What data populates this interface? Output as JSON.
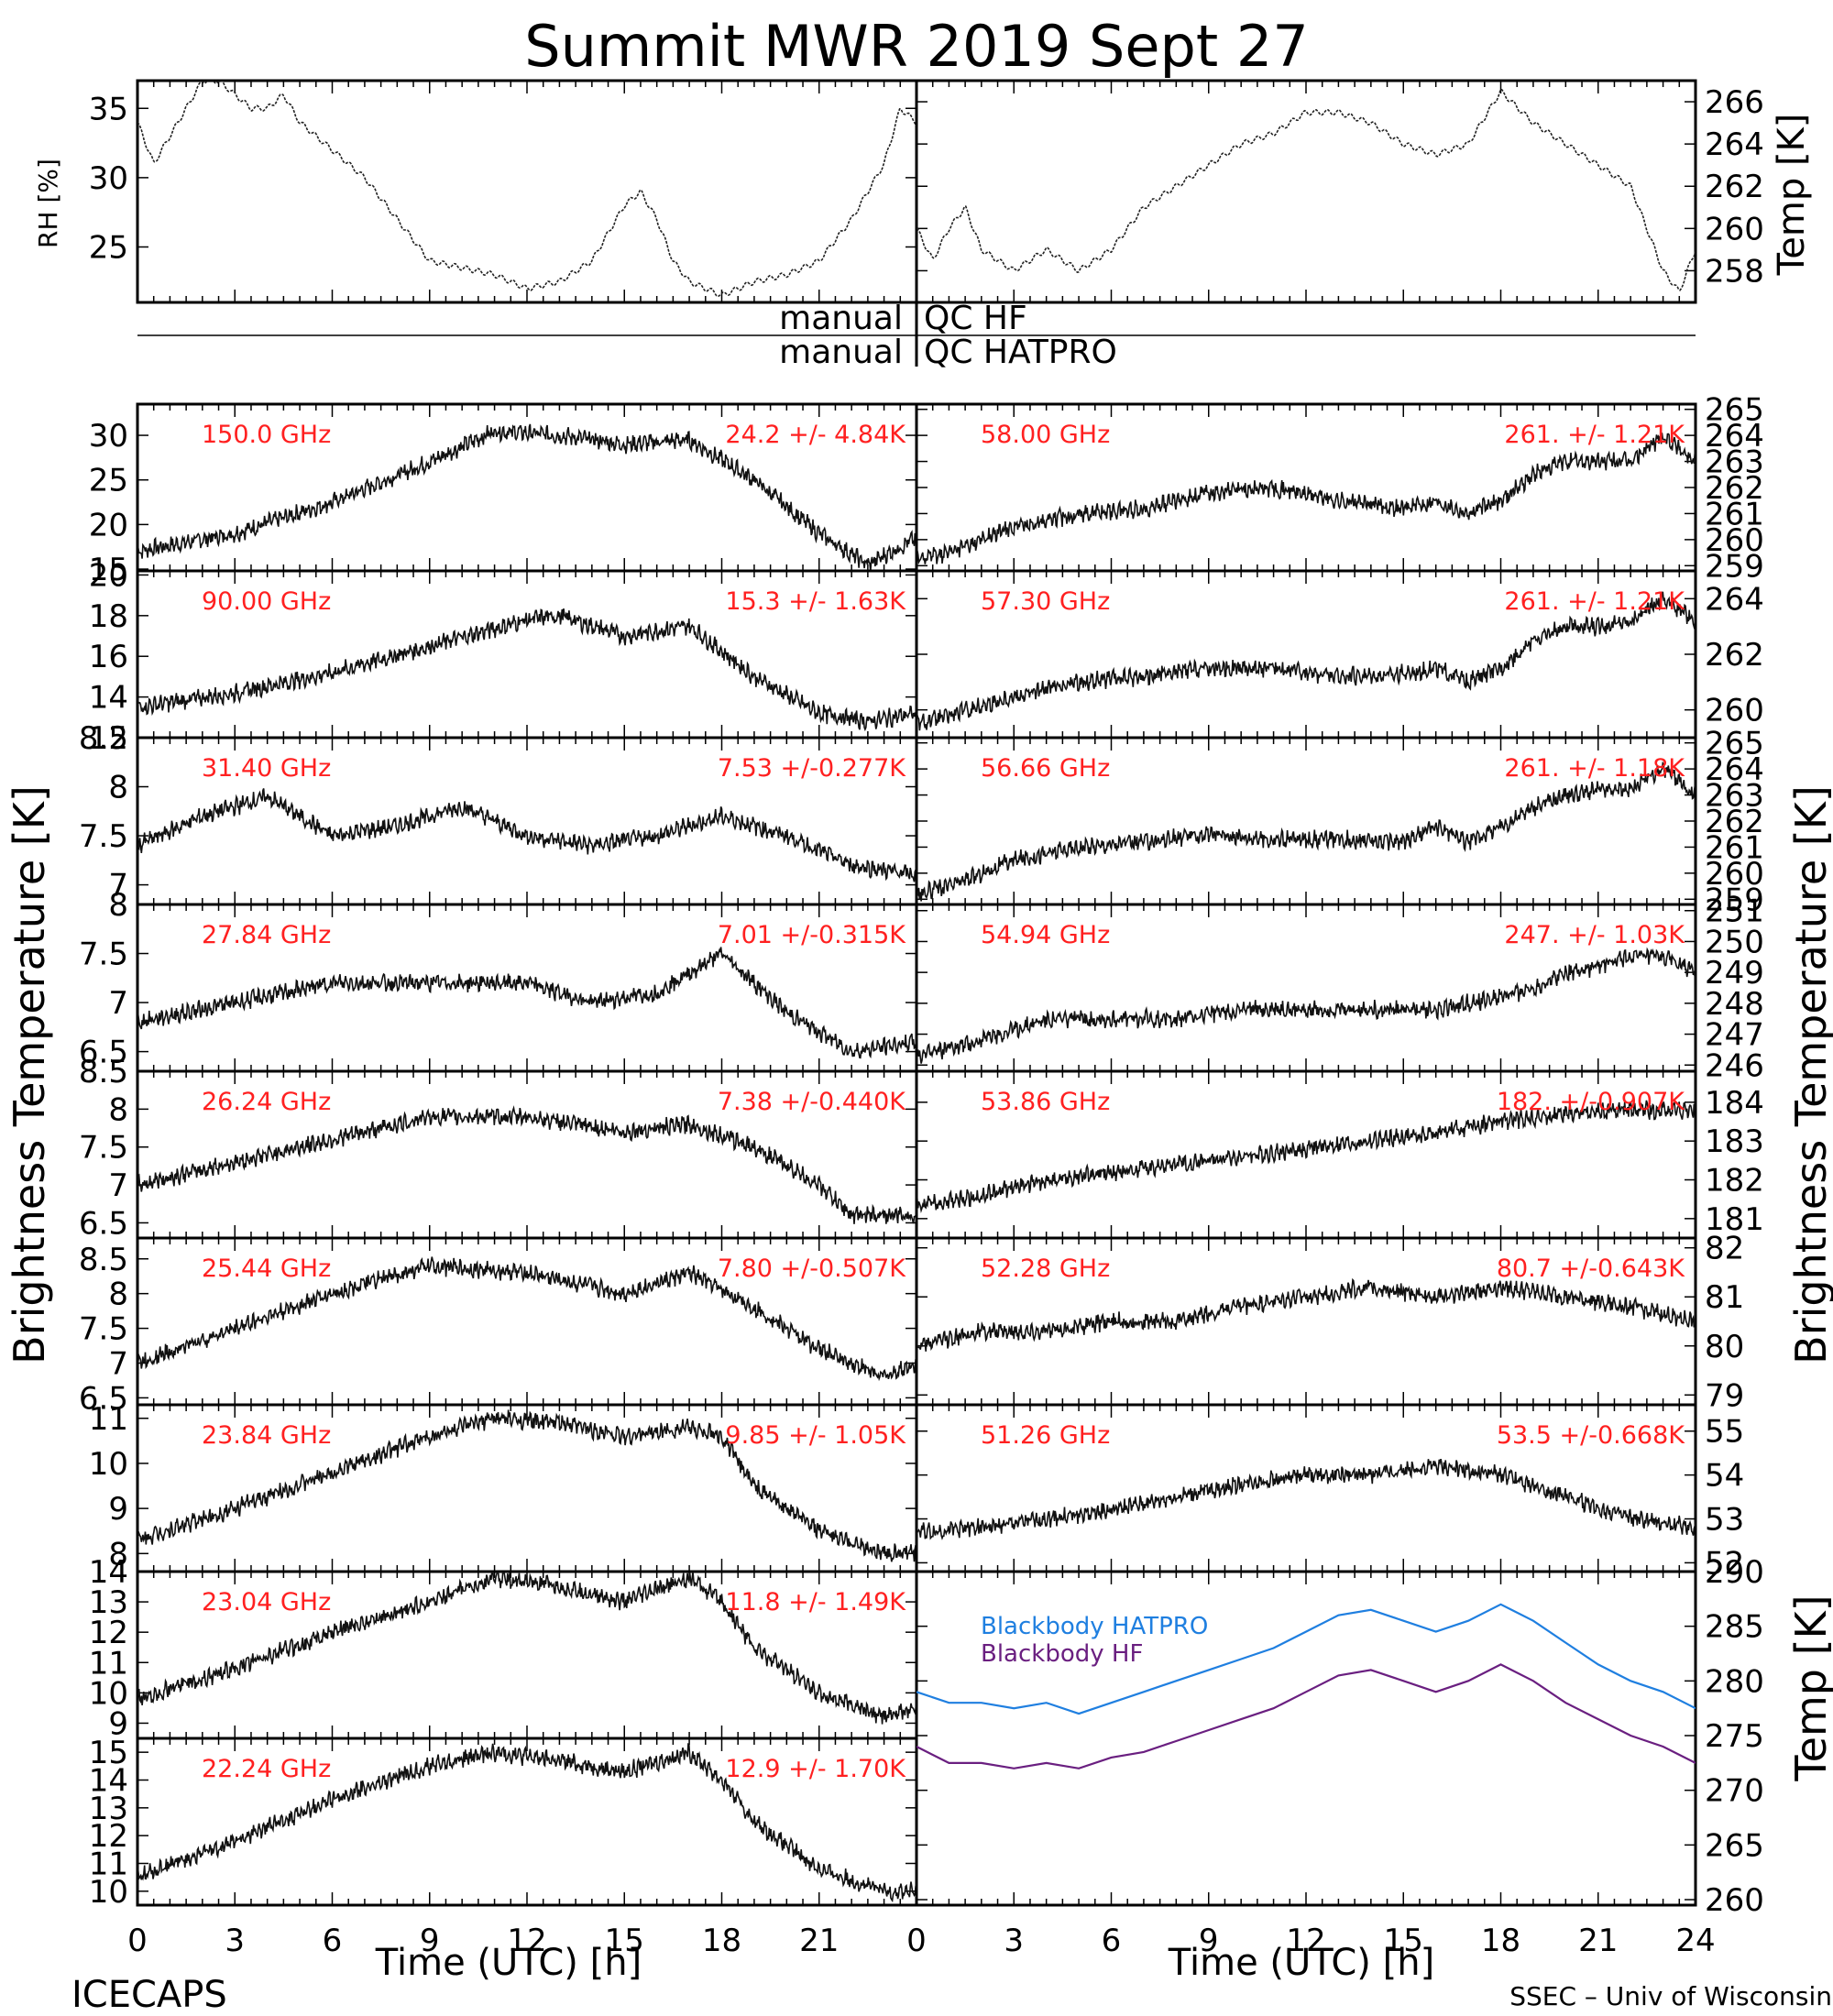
{
  "title": "Summit MWR 2019 Sept 27",
  "footer_left": "ICECAPS",
  "footer_right": "SSEC – Univ of Wisconsin",
  "qc_labels": [
    {
      "left": "manual",
      "right": "QC HF"
    },
    {
      "left": "manual",
      "right": "QC HATPRO"
    }
  ],
  "axis_labels": {
    "rh": "RH [%]",
    "temp_top": "Temp [K]",
    "bt_left": "Brightness Temperature [K]",
    "bt_right": "Brightness Temperature [K]",
    "temp_bottom": "Temp [K]",
    "x_left": "Time (UTC) [h]",
    "x_right": "Time (UTC) [h]"
  },
  "x_ticks_left": [
    "0",
    "3",
    "6",
    "9",
    "12",
    "15",
    "18",
    "21"
  ],
  "x_ticks_right": [
    "0",
    "3",
    "6",
    "9",
    "12",
    "15",
    "18",
    "21",
    "24"
  ],
  "colors": {
    "hatpro": "#1f7fe0",
    "hf": "#6a1f80",
    "label_red": "#ff2020"
  },
  "chart_data": [
    {
      "type": "line",
      "name": "rh",
      "ylim": [
        21,
        37
      ],
      "ticks": [
        25,
        30,
        35
      ],
      "x": [
        0,
        0.5,
        1,
        1.5,
        2,
        2.5,
        3,
        3.5,
        4,
        4.5,
        5,
        5.5,
        6,
        7,
        8,
        9,
        10,
        11,
        12,
        13,
        14,
        14.5,
        15,
        15.5,
        16,
        16.5,
        17,
        18,
        19,
        20,
        21,
        22,
        23,
        23.5,
        24
      ],
      "y": [
        34,
        31,
        33,
        35,
        37,
        37,
        36,
        35,
        35,
        36,
        34,
        33,
        32,
        30,
        27,
        24,
        23.5,
        23,
        22,
        22.5,
        24,
        26,
        28,
        29,
        27,
        24,
        22.5,
        21.5,
        22.5,
        23,
        24,
        27,
        31,
        35,
        34
      ]
    },
    {
      "type": "line",
      "name": "temp-top",
      "ylim": [
        256.5,
        267
      ],
      "ticks": [
        258,
        260,
        262,
        264,
        266
      ],
      "x": [
        0,
        0.5,
        1,
        1.5,
        2,
        3,
        4,
        5,
        6,
        7,
        8,
        9,
        10,
        11,
        12,
        13,
        14,
        15,
        16,
        17,
        18,
        19,
        20,
        21,
        22,
        22.5,
        23,
        23.5,
        24
      ],
      "y": [
        260,
        258.5,
        260,
        261,
        259,
        258,
        259,
        258,
        259,
        261,
        262,
        263,
        264,
        264.5,
        265.5,
        265.5,
        265,
        264,
        263.5,
        264,
        266.5,
        265,
        264,
        263,
        262,
        260,
        258,
        257,
        259
      ]
    },
    {
      "type": "scatter",
      "name": "150-ghz",
      "freq": "150.0 GHz",
      "stats": "24.2 +/-  4.84K",
      "ylim": [
        14.8,
        33.5
      ],
      "ticks": [
        15,
        20,
        25,
        30
      ],
      "x": [
        0,
        3,
        6,
        9,
        11,
        13,
        15,
        17,
        19,
        21,
        22.5,
        24
      ],
      "y": [
        17,
        19,
        22.5,
        27,
        30.5,
        30,
        29,
        29.5,
        25,
        19,
        15.5,
        18.5
      ]
    },
    {
      "type": "scatter",
      "name": "90-ghz",
      "freq": "90.00 GHz",
      "stats": "15.3 +/-  1.63K",
      "ylim": [
        12,
        20.2
      ],
      "ticks": [
        12,
        14,
        16,
        18,
        20
      ],
      "x": [
        0,
        3,
        6,
        9,
        12,
        13,
        15,
        17,
        19,
        21,
        22.5,
        24
      ],
      "y": [
        13.5,
        14.2,
        15.2,
        16.5,
        17.8,
        18,
        17,
        17.5,
        15,
        13.2,
        12.8,
        13.2
      ]
    },
    {
      "type": "scatter",
      "name": "31-ghz",
      "freq": "31.40 GHz",
      "stats": "7.53 +/-0.277K",
      "ylim": [
        6.8,
        8.5
      ],
      "ticks": [
        7.0,
        7.5,
        8.0,
        8.5
      ],
      "x": [
        0,
        2,
        4,
        6,
        8,
        10,
        12,
        14,
        16,
        18,
        20,
        22,
        24
      ],
      "y": [
        7.4,
        7.7,
        7.9,
        7.5,
        7.6,
        7.8,
        7.5,
        7.4,
        7.5,
        7.7,
        7.5,
        7.2,
        7.1
      ]
    },
    {
      "type": "scatter",
      "name": "27-ghz",
      "freq": "27.84 GHz",
      "stats": "7.01 +/-0.315K",
      "ylim": [
        6.3,
        8.0
      ],
      "ticks": [
        6.5,
        7.0,
        7.5,
        8.0
      ],
      "x": [
        0,
        3,
        6,
        9,
        12,
        14,
        16,
        18,
        20,
        22,
        24
      ],
      "y": [
        6.8,
        7.0,
        7.2,
        7.2,
        7.2,
        7.0,
        7.1,
        7.5,
        6.9,
        6.5,
        6.6
      ]
    },
    {
      "type": "scatter",
      "name": "26-ghz",
      "freq": "26.24 GHz",
      "stats": "7.38 +/-0.440K",
      "ylim": [
        6.3,
        8.5
      ],
      "ticks": [
        6.5,
        7.0,
        7.5,
        8.0,
        8.5
      ],
      "x": [
        0,
        3,
        6,
        9,
        12,
        15,
        17,
        19,
        21,
        22,
        24
      ],
      "y": [
        7.0,
        7.3,
        7.6,
        7.9,
        7.9,
        7.7,
        7.8,
        7.5,
        7.0,
        6.6,
        6.6
      ]
    },
    {
      "type": "scatter",
      "name": "25-ghz",
      "freq": "25.44 GHz",
      "stats": "7.80 +/-0.507K",
      "ylim": [
        6.4,
        8.8
      ],
      "ticks": [
        6.5,
        7.0,
        7.5,
        8.0,
        8.5
      ],
      "x": [
        0,
        3,
        6,
        9,
        12,
        15,
        17,
        19,
        21,
        23,
        24
      ],
      "y": [
        7.0,
        7.5,
        8.0,
        8.4,
        8.3,
        8.0,
        8.3,
        7.8,
        7.2,
        6.8,
        7.0
      ]
    },
    {
      "type": "scatter",
      "name": "23-84-ghz",
      "freq": "23.84 GHz",
      "stats": "9.85 +/- 1.05K",
      "ylim": [
        7.6,
        11.3
      ],
      "ticks": [
        8,
        9,
        10,
        11
      ],
      "x": [
        0,
        3,
        6,
        9,
        11,
        13,
        15,
        17,
        18,
        19,
        21,
        23,
        24
      ],
      "y": [
        8.3,
        9.0,
        9.8,
        10.6,
        11.0,
        10.9,
        10.6,
        10.8,
        10.6,
        9.5,
        8.5,
        8.0,
        8.0
      ]
    },
    {
      "type": "scatter",
      "name": "23-04-ghz",
      "freq": "23.04 GHz",
      "stats": "11.8 +/- 1.49K",
      "ylim": [
        8.5,
        14
      ],
      "ticks": [
        9,
        10,
        11,
        12,
        13,
        14
      ],
      "x": [
        0,
        3,
        6,
        9,
        11,
        13,
        15,
        17,
        18,
        19,
        21,
        23,
        24
      ],
      "y": [
        9.8,
        10.8,
        12.0,
        13.0,
        13.8,
        13.5,
        13.0,
        13.8,
        13.0,
        11.5,
        10.0,
        9.2,
        9.5
      ]
    },
    {
      "type": "scatter",
      "name": "22-24-ghz",
      "freq": "22.24 GHz",
      "stats": "12.9 +/- 1.70K",
      "ylim": [
        9.5,
        15.5
      ],
      "ticks": [
        10,
        11,
        12,
        13,
        14,
        15
      ],
      "x": [
        0,
        3,
        6,
        9,
        11,
        13,
        15,
        17,
        18,
        19,
        21,
        23,
        24
      ],
      "y": [
        10.5,
        11.8,
        13.3,
        14.5,
        15.0,
        14.7,
        14.3,
        15.0,
        14.0,
        12.5,
        10.8,
        10.0,
        10.0
      ]
    },
    {
      "type": "scatter",
      "name": "58-ghz",
      "freq": "58.00 GHz",
      "stats": "261. +/- 1.21K",
      "ylim": [
        258.8,
        265.2
      ],
      "ticks": [
        259,
        260,
        261,
        262,
        263,
        264,
        265
      ],
      "x": [
        0,
        1,
        3,
        5,
        7,
        9,
        11,
        13,
        15,
        16,
        17,
        18,
        19,
        20,
        21,
        22,
        23,
        24
      ],
      "y": [
        259.3,
        259.5,
        260.5,
        261,
        261.2,
        261.8,
        262,
        261.5,
        261.2,
        261.5,
        261,
        261.5,
        262.5,
        263,
        263,
        263,
        264,
        263
      ]
    },
    {
      "type": "scatter",
      "name": "57-ghz",
      "freq": "57.30 GHz",
      "stats": "261. +/- 1.21K",
      "ylim": [
        259,
        265
      ],
      "ticks": [
        260,
        262,
        264
      ],
      "x": [
        0,
        1,
        3,
        5,
        7,
        9,
        11,
        13,
        15,
        16,
        17,
        18,
        19,
        20,
        21,
        22,
        23,
        24
      ],
      "y": [
        259.5,
        259.8,
        260.5,
        261,
        261.2,
        261.5,
        261.5,
        261.2,
        261.3,
        261.5,
        261,
        261.5,
        262.5,
        263,
        263,
        263.2,
        264,
        263.2
      ]
    },
    {
      "type": "scatter",
      "name": "56-ghz",
      "freq": "56.66 GHz",
      "stats": "261. +/- 1.18K",
      "ylim": [
        258.8,
        265.2
      ],
      "ticks": [
        259,
        260,
        261,
        262,
        263,
        264,
        265
      ],
      "x": [
        0,
        1,
        3,
        5,
        7,
        9,
        11,
        13,
        15,
        16,
        17,
        18,
        19,
        20,
        21,
        22,
        23,
        24
      ],
      "y": [
        259.2,
        259.5,
        260.5,
        261,
        261.2,
        261.5,
        261.3,
        261.3,
        261.2,
        261.8,
        261.2,
        261.8,
        262.5,
        263,
        263.2,
        263.2,
        264,
        263
      ]
    },
    {
      "type": "scatter",
      "name": "54-ghz",
      "freq": "54.94 GHz",
      "stats": "247. +/- 1.03K",
      "ylim": [
        245.8,
        251.2
      ],
      "ticks": [
        246,
        247,
        248,
        249,
        250,
        251
      ],
      "x": [
        0,
        2,
        4,
        6,
        8,
        10,
        12,
        14,
        16,
        17,
        18,
        19,
        20,
        21,
        22,
        23,
        24
      ],
      "y": [
        246.3,
        246.8,
        247.5,
        247.5,
        247.5,
        247.8,
        247.8,
        247.8,
        247.8,
        248,
        248.2,
        248.5,
        249,
        249.2,
        249.5,
        249.5,
        249
      ]
    },
    {
      "type": "scatter",
      "name": "53-ghz",
      "freq": "53.86 GHz",
      "stats": "182. +/-0.907K",
      "ylim": [
        180.5,
        184.8
      ],
      "ticks": [
        181,
        182,
        183,
        184
      ],
      "x": [
        0,
        2,
        4,
        6,
        8,
        10,
        12,
        14,
        16,
        18,
        20,
        22,
        24
      ],
      "y": [
        181.3,
        181.6,
        182,
        182.2,
        182.4,
        182.6,
        182.8,
        183,
        183.2,
        183.5,
        183.7,
        183.8,
        183.8
      ]
    },
    {
      "type": "scatter",
      "name": "52-ghz",
      "freq": "52.28 GHz",
      "stats": "80.7 +/-0.643K",
      "ylim": [
        78.8,
        82.2
      ],
      "ticks": [
        79,
        80,
        81,
        82
      ],
      "x": [
        0,
        2,
        4,
        6,
        8,
        10,
        12,
        14,
        16,
        18,
        20,
        22,
        24
      ],
      "y": [
        80,
        80.3,
        80.3,
        80.5,
        80.5,
        80.8,
        81,
        81.2,
        81,
        81.2,
        81,
        80.8,
        80.5
      ]
    },
    {
      "type": "scatter",
      "name": "51-ghz",
      "freq": "51.26 GHz",
      "stats": "53.5 +/-0.668K",
      "ylim": [
        51.8,
        55.6
      ],
      "ticks": [
        52,
        53,
        54,
        55
      ],
      "x": [
        0,
        2,
        4,
        6,
        8,
        10,
        12,
        14,
        16,
        18,
        20,
        22,
        24
      ],
      "y": [
        52.7,
        52.8,
        53,
        53.2,
        53.5,
        53.8,
        54,
        54,
        54.2,
        54,
        53.5,
        53.0,
        52.8
      ]
    },
    {
      "type": "line",
      "name": "blackbody",
      "ylim": [
        259.5,
        290
      ],
      "ticks": [
        260,
        265,
        270,
        275,
        280,
        285,
        290
      ],
      "x": [
        0,
        1,
        2,
        3,
        4,
        5,
        6,
        7,
        8,
        9,
        10,
        11,
        12,
        13,
        14,
        15,
        16,
        17,
        18,
        19,
        20,
        21,
        22,
        23,
        24
      ],
      "series": [
        {
          "name": "Blackbody HATPRO",
          "y": [
            279,
            278,
            278,
            277.5,
            278,
            277,
            278,
            279,
            280,
            281,
            282,
            283,
            284.5,
            286,
            286.5,
            285.5,
            284.5,
            285.5,
            287,
            285.5,
            283.5,
            281.5,
            280,
            279,
            277.5
          ]
        },
        {
          "name": "Blackbody HF",
          "y": [
            274,
            272.5,
            272.5,
            272,
            272.5,
            272,
            273,
            273.5,
            274.5,
            275.5,
            276.5,
            277.5,
            279,
            280.5,
            281,
            280,
            279,
            280,
            281.5,
            280,
            278,
            276.5,
            275,
            274,
            272.5
          ]
        }
      ]
    }
  ]
}
